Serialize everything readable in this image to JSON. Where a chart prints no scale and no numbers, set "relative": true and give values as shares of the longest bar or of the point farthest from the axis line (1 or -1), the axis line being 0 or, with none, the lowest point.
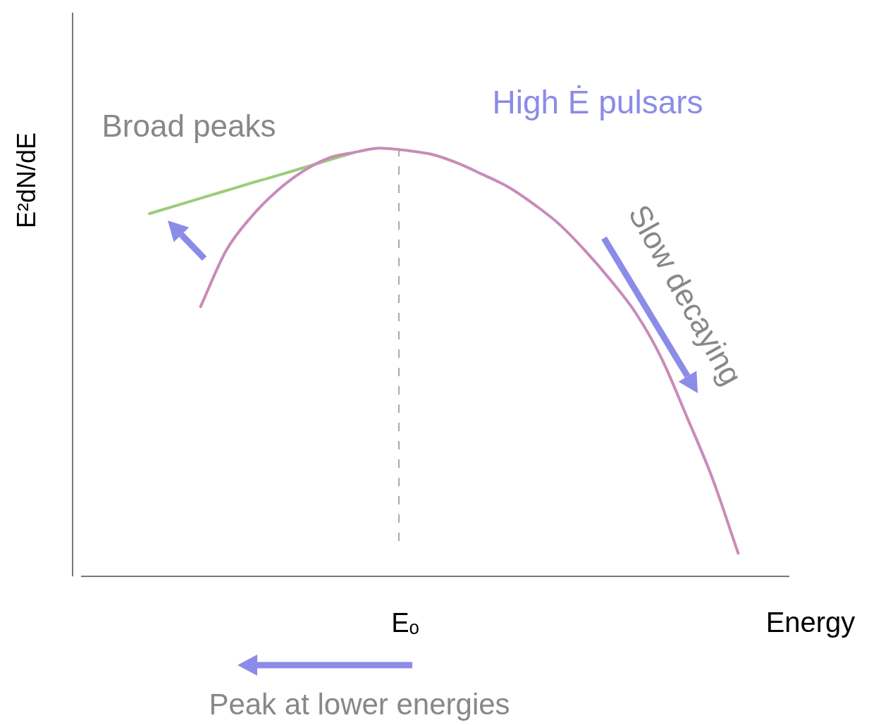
{
  "chart_data": {
    "type": "line",
    "relative": true,
    "xlabel": "Energy",
    "ylabel": "E²dN/dE",
    "grid": false,
    "legend": false,
    "marker": "none",
    "line_style": "solid",
    "categories": [
      null,
      null,
      null,
      null,
      null,
      null,
      null,
      null,
      null,
      null,
      null,
      null,
      null,
      null,
      null,
      null,
      null,
      null,
      null,
      null,
      null,
      null,
      null,
      null
    ],
    "series": [
      {
        "color": "#c98bb9",
        "values": [
          null,
          null,
          0.63,
          0.761,
          0.841,
          0.901,
          0.946,
          0.977,
          0.99,
          1,
          0.995,
          0.986,
          0.966,
          0.939,
          0.91,
          0.87,
          0.823,
          0.762,
          0.693,
          0.615,
          0.51,
          0.372,
          0.228,
          0.054
        ]
      },
      {
        "color": "#9ccc7c",
        "values": [
          0.847,
          0.865,
          0.883,
          0.901,
          0.919,
          0.936,
          0.954,
          0.972,
          0.99,
          null,
          null,
          null,
          null,
          null,
          null,
          null,
          null,
          null,
          null,
          null,
          null,
          null,
          null,
          null
        ]
      }
    ],
    "annotations": [
      "High Ė pulsars",
      "Broad peaks",
      "Slow decaying",
      "Peak at lower energies",
      "Eₒ"
    ]
  }
}
